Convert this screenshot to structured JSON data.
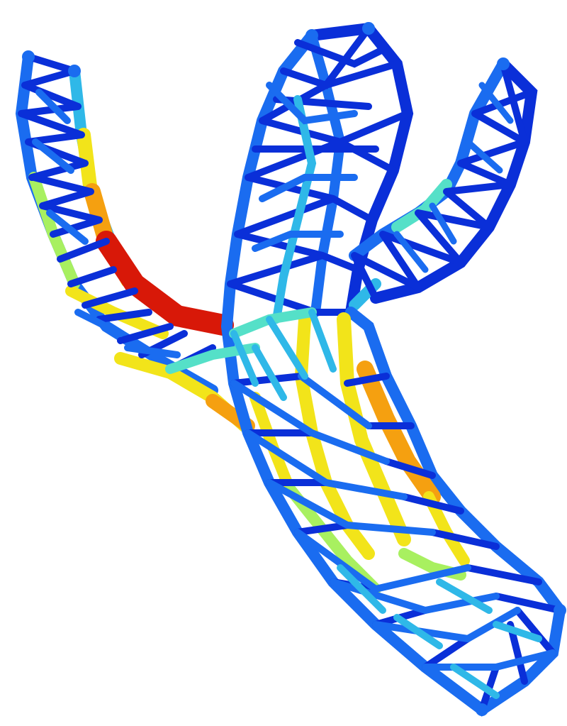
{
  "scene": {
    "subject": "lattice-truss-branching-structure",
    "colormap": [
      "#0a2fd8",
      "#1a6cf0",
      "#2fb8e8",
      "#55e0c8",
      "#a8f060",
      "#f2e41a",
      "#f5a010",
      "#e8300a",
      "#d81808"
    ],
    "background": "#ffffff"
  }
}
